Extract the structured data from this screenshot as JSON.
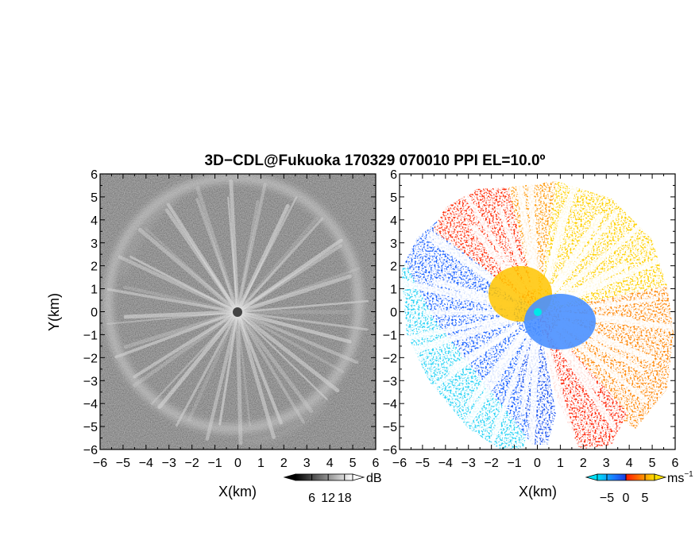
{
  "title": "3D−CDL@Fukuoka 170329 070010 PPI EL=10.0º",
  "chart_data": [
    {
      "type": "heatmap",
      "panel": "left",
      "quantity": "backscatter intensity",
      "xlabel": "X(km)",
      "ylabel": "Y(km)",
      "xlim": [
        -6,
        6
      ],
      "ylim": [
        -6,
        6
      ],
      "xticks": [
        -6,
        -5,
        -4,
        -3,
        -2,
        -1,
        0,
        1,
        2,
        3,
        4,
        5,
        6
      ],
      "yticks": [
        -6,
        -5,
        -4,
        -3,
        -2,
        -1,
        0,
        1,
        2,
        3,
        4,
        5,
        6
      ],
      "xtick_labels": [
        "−6",
        "−5",
        "−4",
        "−3",
        "−2",
        "−1",
        "0",
        "1",
        "2",
        "3",
        "4",
        "5",
        "6"
      ],
      "ytick_labels": [
        "−6",
        "−5",
        "−4",
        "−3",
        "−2",
        "−1",
        "0",
        "1",
        "2",
        "3",
        "4",
        "5",
        "6"
      ],
      "colormap": [
        "#000000",
        "#ffffff"
      ],
      "colorbar": {
        "unit": "dB",
        "ticks": [
          6,
          12,
          18
        ],
        "tick_labels": [
          "6",
          "12",
          "18"
        ],
        "range": [
          0,
          21
        ]
      }
    },
    {
      "type": "heatmap",
      "panel": "right",
      "quantity": "radial velocity",
      "xlabel": "X(km)",
      "ylabel": "",
      "xlim": [
        -6,
        6
      ],
      "ylim": [
        -6,
        6
      ],
      "xticks": [
        -6,
        -5,
        -4,
        -3,
        -2,
        -1,
        0,
        1,
        2,
        3,
        4,
        5,
        6
      ],
      "yticks": [
        -6,
        -5,
        -4,
        -3,
        -2,
        -1,
        0,
        1,
        2,
        3,
        4,
        5,
        6
      ],
      "xtick_labels": [
        "−6",
        "−5",
        "−4",
        "−3",
        "−2",
        "−1",
        "0",
        "1",
        "2",
        "3",
        "4",
        "5",
        "6"
      ],
      "ytick_labels": [
        "−6",
        "−5",
        "−4",
        "−3",
        "−2",
        "−1",
        "0",
        "1",
        "2",
        "3",
        "4",
        "5",
        "6"
      ],
      "colormap": [
        "#00e0f5",
        "#1a78ff",
        "#1e3de0",
        "#ff1a00",
        "#ff7a00",
        "#ffe000"
      ],
      "colorbar": {
        "unit": "ms",
        "unit_exponent": "−1",
        "ticks": [
          -5,
          0,
          5
        ],
        "tick_labels": [
          "−5",
          "0",
          "5"
        ],
        "range": [
          -7.5,
          7.5
        ]
      }
    }
  ]
}
